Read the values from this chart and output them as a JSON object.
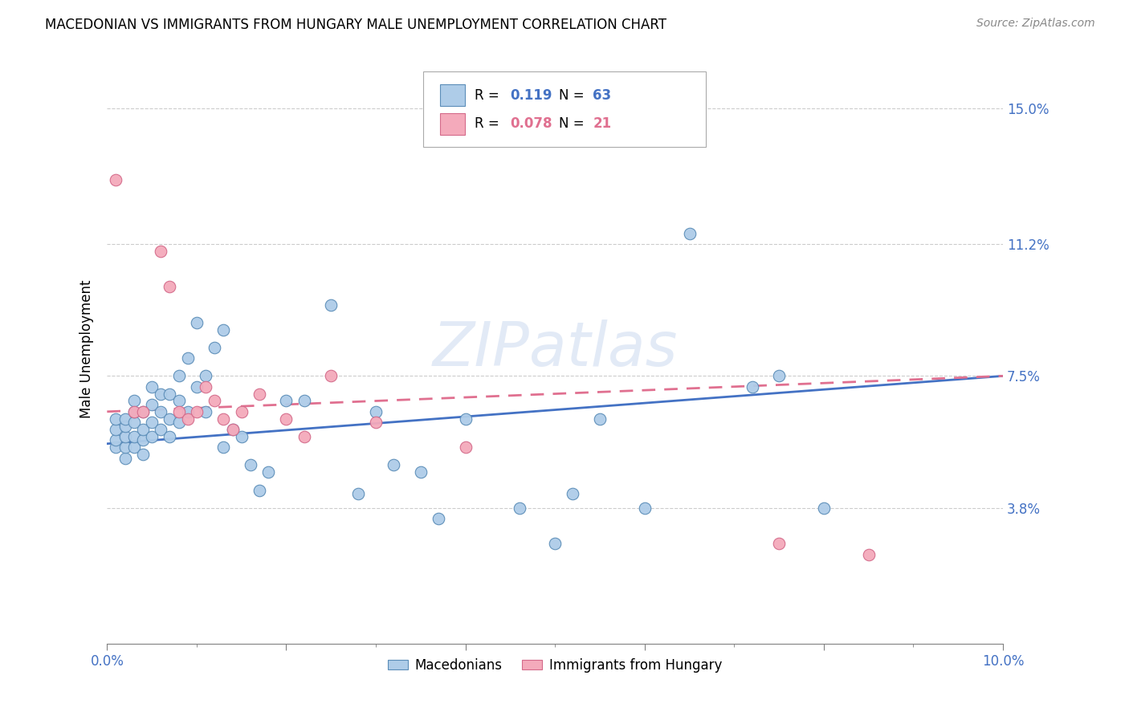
{
  "title": "MACEDONIAN VS IMMIGRANTS FROM HUNGARY MALE UNEMPLOYMENT CORRELATION CHART",
  "source": "Source: ZipAtlas.com",
  "ylabel": "Male Unemployment",
  "y_tick_labels": [
    "3.8%",
    "7.5%",
    "11.2%",
    "15.0%"
  ],
  "y_tick_values": [
    0.038,
    0.075,
    0.112,
    0.15
  ],
  "xlim": [
    0.0,
    0.1
  ],
  "ylim": [
    0.0,
    0.165
  ],
  "legend_blue_R": "0.119",
  "legend_blue_N": "63",
  "legend_pink_R": "0.078",
  "legend_pink_N": "21",
  "blue_color": "#AECCE8",
  "pink_color": "#F4AABB",
  "blue_edge_color": "#5B8DB8",
  "pink_edge_color": "#D46A8A",
  "blue_line_color": "#4472C4",
  "pink_line_color": "#E07090",
  "watermark": "ZIPatlas",
  "macedonians_x": [
    0.001,
    0.001,
    0.001,
    0.001,
    0.002,
    0.002,
    0.002,
    0.002,
    0.002,
    0.003,
    0.003,
    0.003,
    0.003,
    0.003,
    0.004,
    0.004,
    0.004,
    0.004,
    0.005,
    0.005,
    0.005,
    0.005,
    0.006,
    0.006,
    0.006,
    0.007,
    0.007,
    0.007,
    0.008,
    0.008,
    0.008,
    0.009,
    0.009,
    0.01,
    0.01,
    0.011,
    0.011,
    0.012,
    0.013,
    0.013,
    0.014,
    0.015,
    0.016,
    0.017,
    0.018,
    0.02,
    0.022,
    0.025,
    0.028,
    0.03,
    0.032,
    0.035,
    0.037,
    0.04,
    0.046,
    0.05,
    0.052,
    0.055,
    0.06,
    0.065,
    0.072,
    0.075,
    0.08
  ],
  "macedonians_y": [
    0.055,
    0.057,
    0.06,
    0.063,
    0.052,
    0.055,
    0.058,
    0.061,
    0.063,
    0.055,
    0.058,
    0.062,
    0.065,
    0.068,
    0.053,
    0.057,
    0.06,
    0.065,
    0.058,
    0.062,
    0.067,
    0.072,
    0.06,
    0.065,
    0.07,
    0.058,
    0.063,
    0.07,
    0.062,
    0.068,
    0.075,
    0.065,
    0.08,
    0.072,
    0.09,
    0.065,
    0.075,
    0.083,
    0.088,
    0.055,
    0.06,
    0.058,
    0.05,
    0.043,
    0.048,
    0.068,
    0.068,
    0.095,
    0.042,
    0.065,
    0.05,
    0.048,
    0.035,
    0.063,
    0.038,
    0.028,
    0.042,
    0.063,
    0.038,
    0.115,
    0.072,
    0.075,
    0.038
  ],
  "hungary_x": [
    0.001,
    0.003,
    0.004,
    0.006,
    0.007,
    0.008,
    0.009,
    0.01,
    0.011,
    0.012,
    0.013,
    0.014,
    0.015,
    0.017,
    0.02,
    0.022,
    0.025,
    0.03,
    0.04,
    0.075,
    0.085
  ],
  "hungary_y": [
    0.13,
    0.065,
    0.065,
    0.11,
    0.1,
    0.065,
    0.063,
    0.065,
    0.072,
    0.068,
    0.063,
    0.06,
    0.065,
    0.07,
    0.063,
    0.058,
    0.075,
    0.062,
    0.055,
    0.028,
    0.025
  ],
  "blue_trend_start_y": 0.056,
  "blue_trend_end_y": 0.075,
  "pink_trend_start_y": 0.065,
  "pink_trend_end_y": 0.075
}
